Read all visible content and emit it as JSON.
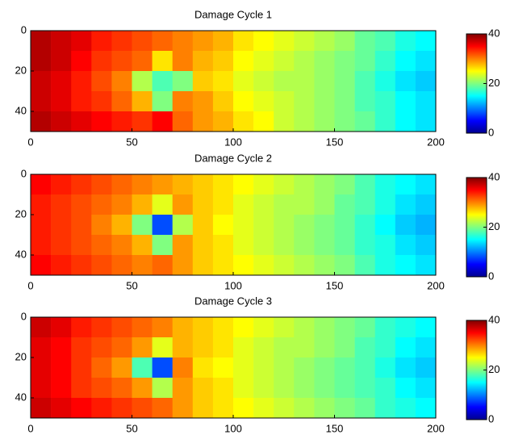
{
  "chart_data": [
    {
      "type": "heatmap",
      "title": "Damage Cycle 1",
      "colormap": "jet",
      "x": [
        5,
        15,
        25,
        35,
        45,
        55,
        65,
        75,
        85,
        95,
        105,
        115,
        125,
        135,
        145,
        155,
        165,
        175,
        185,
        195
      ],
      "y": [
        5,
        15,
        25,
        35,
        45
      ],
      "values": [
        [
          38,
          37,
          36,
          34,
          33,
          32,
          31,
          30,
          29,
          28,
          26,
          25,
          24,
          23,
          22,
          21,
          19,
          18,
          16,
          15
        ],
        [
          38,
          37,
          35,
          33,
          32,
          31,
          26,
          30,
          28,
          27,
          25,
          24,
          23,
          22,
          21,
          20,
          19,
          17,
          15,
          14
        ],
        [
          37,
          36,
          34,
          32,
          30,
          22,
          18,
          20,
          27,
          26,
          24,
          23,
          22,
          22,
          21,
          20,
          18,
          16,
          14,
          13
        ],
        [
          37,
          36,
          34,
          33,
          31,
          28,
          20,
          30,
          29,
          27,
          25,
          24,
          23,
          22,
          21,
          20,
          18,
          17,
          15,
          14
        ],
        [
          38,
          37,
          36,
          35,
          34,
          33,
          35,
          31,
          29,
          28,
          26,
          25,
          23,
          22,
          21,
          20,
          19,
          17,
          15,
          14
        ]
      ],
      "xlim": [
        0,
        200
      ],
      "xticks": [
        0,
        50,
        100,
        150,
        200
      ],
      "ylim": [
        0,
        50
      ],
      "yreverse": true,
      "yticks": [
        0,
        20,
        40
      ],
      "clim": [
        0,
        40
      ],
      "cticks": [
        0,
        20,
        40
      ]
    },
    {
      "type": "heatmap",
      "title": "Damage Cycle 2",
      "colormap": "jet",
      "x": [
        5,
        15,
        25,
        35,
        45,
        55,
        65,
        75,
        85,
        95,
        105,
        115,
        125,
        135,
        145,
        155,
        165,
        175,
        185,
        195
      ],
      "y": [
        5,
        15,
        25,
        35,
        45
      ],
      "values": [
        [
          35,
          34,
          33,
          32,
          31,
          30,
          29,
          28,
          27,
          26,
          25,
          24,
          23,
          22,
          21,
          20,
          18,
          16,
          15,
          14
        ],
        [
          34,
          33,
          32,
          31,
          30,
          28,
          24,
          29,
          27,
          26,
          24,
          23,
          22,
          22,
          21,
          19,
          18,
          16,
          14,
          13
        ],
        [
          34,
          33,
          32,
          30,
          28,
          20,
          8,
          22,
          27,
          25,
          24,
          23,
          22,
          21,
          20,
          19,
          17,
          15,
          13,
          12
        ],
        [
          34,
          33,
          32,
          31,
          30,
          28,
          20,
          29,
          27,
          26,
          24,
          23,
          22,
          21,
          20,
          19,
          17,
          16,
          14,
          13
        ],
        [
          35,
          34,
          33,
          32,
          31,
          30,
          31,
          29,
          27,
          26,
          25,
          24,
          23,
          22,
          21,
          20,
          18,
          16,
          15,
          14
        ]
      ],
      "xlim": [
        0,
        200
      ],
      "xticks": [
        0,
        50,
        100,
        150,
        200
      ],
      "ylim": [
        0,
        50
      ],
      "yreverse": true,
      "yticks": [
        0,
        20,
        40
      ],
      "clim": [
        0,
        40
      ],
      "cticks": [
        0,
        20,
        40
      ]
    },
    {
      "type": "heatmap",
      "title": "Damage Cycle 3",
      "colormap": "jet",
      "x": [
        5,
        15,
        25,
        35,
        45,
        55,
        65,
        75,
        85,
        95,
        105,
        115,
        125,
        135,
        145,
        155,
        165,
        175,
        185,
        195
      ],
      "y": [
        5,
        15,
        25,
        35,
        45
      ],
      "values": [
        [
          37,
          36,
          34,
          33,
          32,
          31,
          30,
          28,
          27,
          26,
          25,
          24,
          23,
          22,
          21,
          20,
          19,
          17,
          16,
          15
        ],
        [
          36,
          35,
          33,
          32,
          31,
          29,
          24,
          28,
          27,
          26,
          24,
          23,
          22,
          22,
          21,
          20,
          18,
          17,
          15,
          14
        ],
        [
          36,
          35,
          33,
          31,
          29,
          18,
          8,
          30,
          26,
          25,
          24,
          23,
          22,
          21,
          20,
          19,
          18,
          16,
          14,
          13
        ],
        [
          36,
          35,
          33,
          32,
          31,
          29,
          22,
          29,
          27,
          26,
          24,
          23,
          22,
          21,
          20,
          19,
          18,
          17,
          15,
          14
        ],
        [
          37,
          36,
          35,
          34,
          33,
          32,
          31,
          29,
          27,
          26,
          25,
          24,
          23,
          22,
          21,
          20,
          19,
          17,
          16,
          15
        ]
      ],
      "xlim": [
        0,
        200
      ],
      "xticks": [
        0,
        50,
        100,
        150,
        200
      ],
      "ylim": [
        0,
        50
      ],
      "yreverse": true,
      "yticks": [
        0,
        20,
        40
      ],
      "clim": [
        0,
        40
      ],
      "cticks": [
        0,
        20,
        40
      ]
    }
  ]
}
